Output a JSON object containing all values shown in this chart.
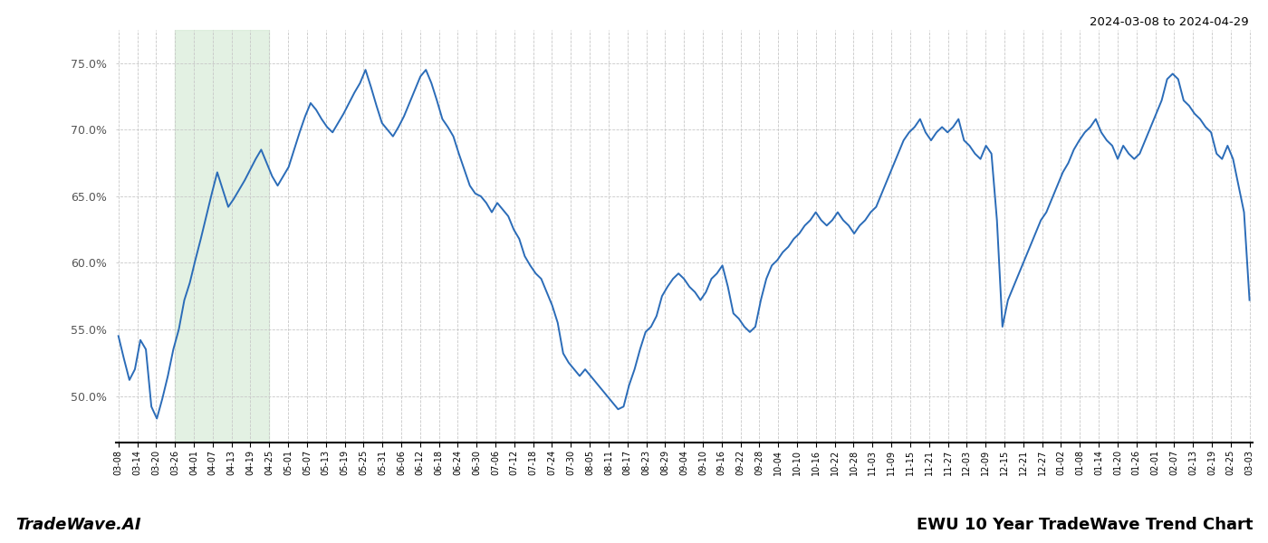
{
  "title_top_right": "2024-03-08 to 2024-04-29",
  "title_bottom_left": "TradeWave.AI",
  "title_bottom_right": "EWU 10 Year TradeWave Trend Chart",
  "line_color": "#2b6cb8",
  "line_width": 1.4,
  "shade_color": "#d4ead4",
  "shade_alpha": 0.65,
  "background_color": "#ffffff",
  "grid_color": "#c8c8c8",
  "ylim": [
    46.5,
    77.5
  ],
  "yticks": [
    50.0,
    55.0,
    60.0,
    65.0,
    70.0,
    75.0
  ],
  "x_labels": [
    "03-08",
    "03-14",
    "03-20",
    "03-26",
    "04-01",
    "04-07",
    "04-13",
    "04-19",
    "04-25",
    "05-01",
    "05-07",
    "05-13",
    "05-19",
    "05-25",
    "05-31",
    "06-06",
    "06-12",
    "06-18",
    "06-24",
    "06-30",
    "07-06",
    "07-12",
    "07-18",
    "07-24",
    "07-30",
    "08-05",
    "08-11",
    "08-17",
    "08-23",
    "08-29",
    "09-04",
    "09-10",
    "09-16",
    "09-22",
    "09-28",
    "10-04",
    "10-10",
    "10-16",
    "10-22",
    "10-28",
    "11-03",
    "11-09",
    "11-15",
    "11-21",
    "11-27",
    "12-03",
    "12-09",
    "12-15",
    "12-21",
    "12-27",
    "01-02",
    "01-08",
    "01-14",
    "01-20",
    "01-26",
    "02-01",
    "02-07",
    "02-13",
    "02-19",
    "02-25",
    "03-03"
  ],
  "shade_start_label": "03-26",
  "shade_end_label": "04-25",
  "y_values": [
    54.5,
    52.8,
    51.2,
    52.0,
    54.2,
    53.5,
    49.2,
    48.3,
    49.8,
    51.5,
    53.5,
    55.0,
    57.2,
    58.5,
    60.2,
    61.8,
    63.5,
    65.2,
    66.8,
    65.5,
    64.2,
    64.8,
    65.5,
    66.2,
    67.0,
    67.8,
    68.5,
    67.5,
    66.5,
    65.8,
    66.5,
    67.2,
    68.5,
    69.8,
    71.0,
    72.0,
    71.5,
    70.8,
    70.2,
    69.8,
    70.5,
    71.2,
    72.0,
    72.8,
    73.5,
    74.5,
    73.2,
    71.8,
    70.5,
    70.0,
    69.5,
    70.2,
    71.0,
    72.0,
    73.0,
    74.0,
    74.5,
    73.5,
    72.2,
    70.8,
    70.2,
    69.5,
    68.2,
    67.0,
    65.8,
    65.2,
    65.0,
    64.5,
    63.8,
    64.5,
    64.0,
    63.5,
    62.5,
    61.8,
    60.5,
    59.8,
    59.2,
    58.8,
    57.8,
    56.8,
    55.5,
    53.2,
    52.5,
    52.0,
    51.5,
    52.0,
    51.5,
    51.0,
    50.5,
    50.0,
    49.5,
    49.0,
    49.2,
    50.8,
    52.0,
    53.5,
    54.8,
    55.2,
    56.0,
    57.5,
    58.2,
    58.8,
    59.2,
    58.8,
    58.2,
    57.8,
    57.2,
    57.8,
    58.8,
    59.2,
    59.8,
    58.2,
    56.2,
    55.8,
    55.2,
    54.8,
    55.2,
    57.2,
    58.8,
    59.8,
    60.2,
    60.8,
    61.2,
    61.8,
    62.2,
    62.8,
    63.2,
    63.8,
    63.2,
    62.8,
    63.2,
    63.8,
    63.2,
    62.8,
    62.2,
    62.8,
    63.2,
    63.8,
    64.2,
    65.2,
    66.2,
    67.2,
    68.2,
    69.2,
    69.8,
    70.2,
    70.8,
    69.8,
    69.2,
    69.8,
    70.2,
    69.8,
    70.2,
    70.8,
    69.2,
    68.8,
    68.2,
    67.8,
    68.8,
    68.2,
    63.2,
    55.2,
    57.2,
    58.2,
    59.2,
    60.2,
    61.2,
    62.2,
    63.2,
    63.8,
    64.8,
    65.8,
    66.8,
    67.5,
    68.5,
    69.2,
    69.8,
    70.2,
    70.8,
    69.8,
    69.2,
    68.8,
    67.8,
    68.8,
    68.2,
    67.8,
    68.2,
    69.2,
    70.2,
    71.2,
    72.2,
    73.8,
    74.2,
    73.8,
    72.2,
    71.8,
    71.2,
    70.8,
    70.2,
    69.8,
    68.2,
    67.8,
    68.8,
    67.8,
    65.8,
    63.8,
    57.2
  ]
}
